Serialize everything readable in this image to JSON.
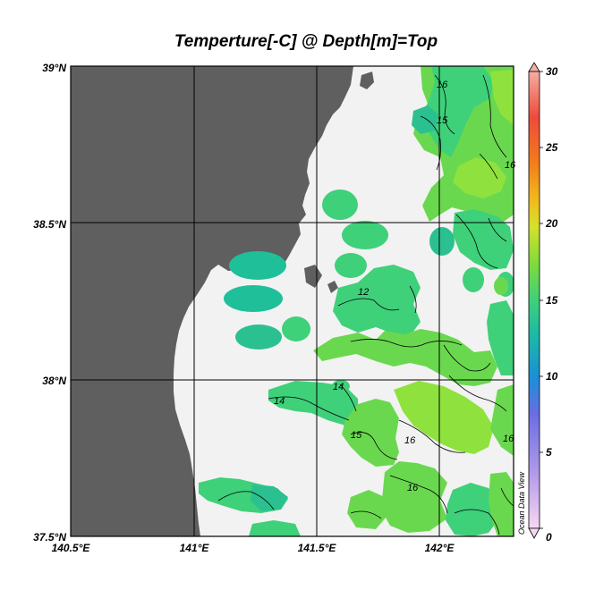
{
  "title": "Temperture[-C] @ Depth[m]=Top",
  "credit": "Ocean Data View",
  "map": {
    "lon_ticks": [
      "140.5°E",
      "141°E",
      "141.5°E",
      "142°E"
    ],
    "lat_ticks": [
      "39°N",
      "38.5°N",
      "38°N",
      "37.5°N"
    ],
    "lon_range": [
      140.5,
      142.3
    ],
    "lat_range": [
      37.5,
      39.0
    ]
  },
  "colorbar": {
    "ticks": [
      "30",
      "25",
      "20",
      "15",
      "10",
      "5",
      "0"
    ],
    "range": [
      0,
      30
    ]
  },
  "contour_labels": [
    "16",
    "15",
    "16",
    "12",
    "14",
    "14",
    "15",
    "16",
    "16",
    "16"
  ],
  "colors": {
    "land": "#5f5f5f",
    "sea_no_data": "#f2f2f2",
    "temp_11": "#1fbf99",
    "temp_13": "#3fd07a",
    "temp_15": "#6ad84f",
    "temp_16": "#8fe23e"
  }
}
